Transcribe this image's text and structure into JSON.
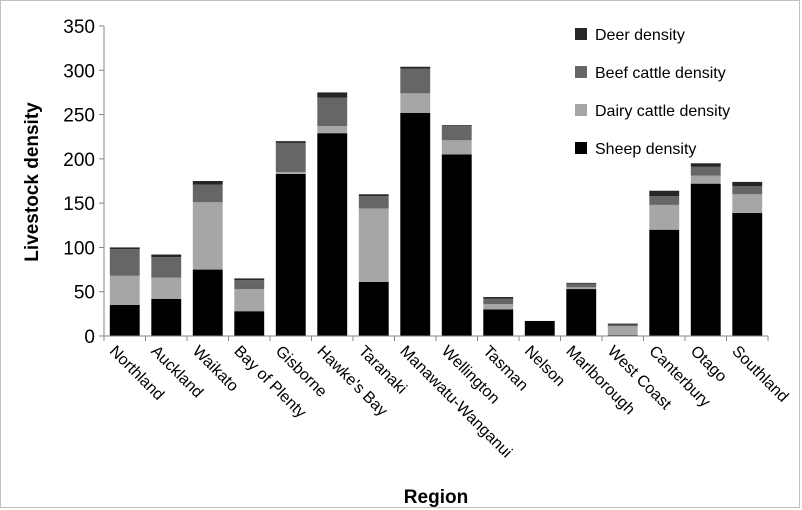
{
  "chart_data": {
    "type": "bar",
    "stacked": true,
    "title": "",
    "xlabel": "Region",
    "ylabel": "Livestock density",
    "ylim": [
      0,
      350
    ],
    "yticks": [
      0,
      50,
      100,
      150,
      200,
      250,
      300,
      350
    ],
    "grid": false,
    "legend_position": "top-right",
    "categories": [
      "Northland",
      "Auckland",
      "Waikato",
      "Bay of Plenty",
      "Gisborne",
      "Hawke's Bay",
      "Taranaki",
      "Manawatu-Wanganui",
      "Wellington",
      "Tasman",
      "Nelson",
      "Marlborough",
      "West Coast",
      "Canterbury",
      "Otago",
      "Southland"
    ],
    "series": [
      {
        "name": "Sheep density",
        "color": "#000000",
        "values": [
          35,
          42,
          75,
          28,
          183,
          229,
          61,
          252,
          205,
          30,
          17,
          53,
          1,
          120,
          172,
          139
        ]
      },
      {
        "name": "Dairy cattle density",
        "color": "#a6a6a6",
        "values": [
          33,
          24,
          76,
          25,
          2,
          8,
          83,
          22,
          16,
          6,
          0,
          2,
          10,
          28,
          9,
          21
        ]
      },
      {
        "name": "Beef cattle density",
        "color": "#666666",
        "values": [
          30,
          23,
          20,
          10,
          33,
          32,
          14,
          28,
          16,
          6,
          0,
          4,
          2,
          10,
          10,
          9
        ]
      },
      {
        "name": "Deer density",
        "color": "#262626",
        "values": [
          2,
          3,
          4,
          2,
          2,
          6,
          2,
          2,
          1,
          2,
          0,
          1,
          1,
          6,
          4,
          5
        ]
      }
    ]
  }
}
